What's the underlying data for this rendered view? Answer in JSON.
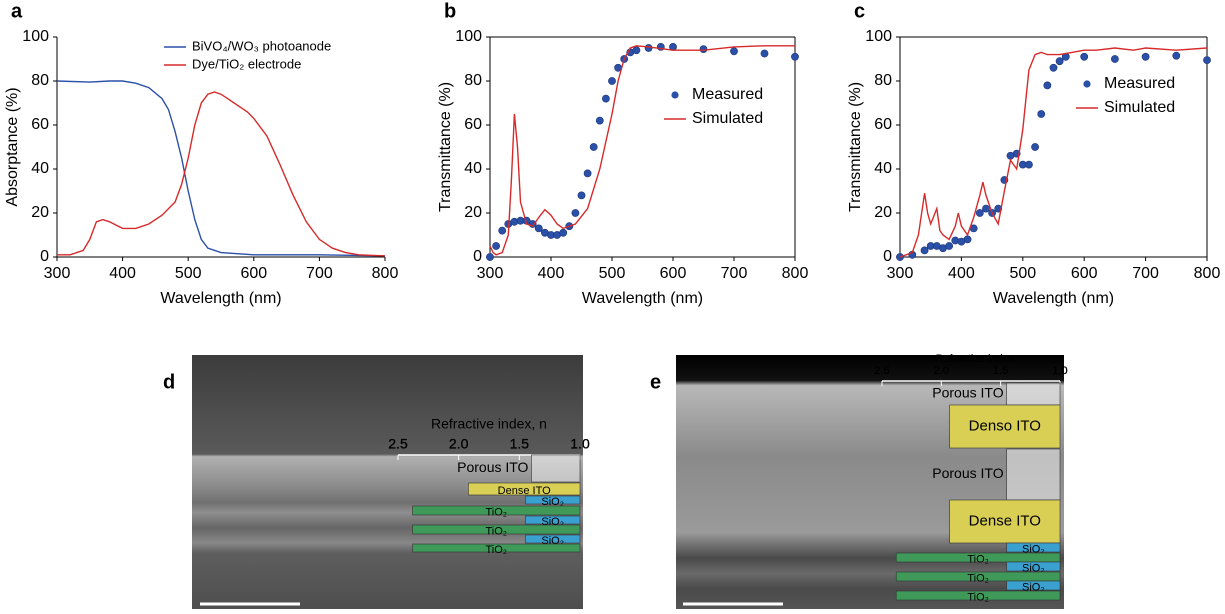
{
  "chart_data": [
    {
      "type": "line",
      "panel_label": "a",
      "xlabel": "Wavelength (nm)",
      "ylabel": "Absorptance (%)",
      "xlim": [
        300,
        800
      ],
      "ylim": [
        0,
        100
      ],
      "xticks": [
        300,
        400,
        500,
        600,
        700,
        800
      ],
      "yticks": [
        0,
        20,
        40,
        60,
        80,
        100
      ],
      "box": false,
      "legend": "upper right",
      "series": [
        {
          "name": "BiVO₄/WO₃ photoanode",
          "color": "#2b50a8",
          "marker": false,
          "x": [
            300,
            350,
            380,
            400,
            420,
            440,
            460,
            470,
            480,
            490,
            500,
            510,
            520,
            530,
            550,
            600,
            700,
            800
          ],
          "values": [
            80,
            79.5,
            80,
            80,
            79,
            77,
            72,
            67,
            57,
            45,
            30,
            17,
            8,
            4,
            2,
            1,
            1,
            0.5
          ]
        },
        {
          "name": "Dye/TiO₂ electrode",
          "color": "#d62a2a",
          "marker": false,
          "x": [
            300,
            320,
            340,
            350,
            360,
            370,
            380,
            400,
            420,
            440,
            460,
            480,
            490,
            500,
            510,
            520,
            530,
            540,
            550,
            560,
            570,
            580,
            590,
            600,
            620,
            640,
            660,
            680,
            700,
            720,
            740,
            760,
            800
          ],
          "values": [
            1,
            1,
            3,
            8,
            16,
            17,
            16,
            13,
            13,
            15,
            19,
            25,
            33,
            45,
            60,
            70,
            74,
            75,
            74,
            72,
            70,
            68,
            66,
            63,
            55,
            42,
            28,
            16,
            8,
            4,
            2,
            1,
            0.5
          ]
        }
      ]
    },
    {
      "type": "line",
      "panel_label": "b",
      "xlabel": "Wavelength (nm)",
      "ylabel": "Transmittance (%)",
      "xlim": [
        300,
        800
      ],
      "ylim": [
        0,
        100
      ],
      "xticks": [
        300,
        400,
        500,
        600,
        700,
        800
      ],
      "yticks": [
        0,
        20,
        40,
        60,
        80,
        100
      ],
      "box": true,
      "legend": "center right",
      "series": [
        {
          "name": "Measured",
          "color": "#2b50a8",
          "marker": true,
          "x": [
            300,
            310,
            320,
            330,
            340,
            350,
            360,
            370,
            380,
            390,
            400,
            410,
            420,
            430,
            440,
            450,
            460,
            470,
            480,
            490,
            500,
            510,
            520,
            530,
            540,
            560,
            580,
            600,
            650,
            700,
            750,
            800
          ],
          "values": [
            0,
            5,
            12,
            15,
            16,
            16.5,
            16.5,
            15,
            13,
            11,
            10,
            10,
            11,
            14,
            20,
            28,
            38,
            50,
            62,
            72,
            80,
            86,
            90,
            93,
            94,
            95,
            95.5,
            95.5,
            94.5,
            93.5,
            92.5,
            91
          ]
        },
        {
          "name": "Simulated",
          "color": "#d62a2a",
          "marker": false,
          "x": [
            300,
            305,
            310,
            320,
            330,
            335,
            340,
            345,
            350,
            360,
            370,
            380,
            390,
            400,
            410,
            420,
            440,
            460,
            480,
            500,
            510,
            520,
            530,
            540,
            560,
            600,
            650,
            700,
            750,
            800
          ],
          "values": [
            5,
            2,
            1,
            2,
            10,
            35,
            65,
            50,
            25,
            15,
            14,
            18,
            21.5,
            19,
            15,
            13,
            15,
            22,
            40,
            65,
            80,
            90,
            95,
            96,
            95.5,
            94,
            94,
            95.5,
            96,
            96
          ]
        }
      ]
    },
    {
      "type": "line",
      "panel_label": "c",
      "xlabel": "Wavelength (nm)",
      "ylabel": "Transmittance (%)",
      "xlim": [
        300,
        800
      ],
      "ylim": [
        0,
        100
      ],
      "xticks": [
        300,
        400,
        500,
        600,
        700,
        800
      ],
      "yticks": [
        0,
        20,
        40,
        60,
        80,
        100
      ],
      "box": true,
      "legend": "upper right",
      "series": [
        {
          "name": "Measured",
          "color": "#2b50a8",
          "marker": true,
          "x": [
            300,
            320,
            340,
            350,
            360,
            370,
            380,
            390,
            400,
            410,
            420,
            430,
            440,
            450,
            460,
            470,
            480,
            490,
            500,
            510,
            520,
            530,
            540,
            550,
            560,
            570,
            600,
            650,
            700,
            750,
            800
          ],
          "values": [
            0,
            1,
            3,
            5,
            5,
            4,
            5,
            7.5,
            7,
            8,
            13,
            20,
            22,
            20,
            22,
            35,
            46,
            47,
            42,
            42,
            50,
            65,
            78,
            86,
            89,
            91,
            91,
            90,
            91,
            91.5,
            89.5
          ]
        },
        {
          "name": "Simulated",
          "color": "#d62a2a",
          "marker": false,
          "x": [
            300,
            320,
            330,
            340,
            345,
            350,
            360,
            365,
            370,
            380,
            390,
            395,
            400,
            410,
            420,
            430,
            435,
            440,
            450,
            460,
            470,
            480,
            490,
            500,
            510,
            520,
            530,
            540,
            560,
            580,
            600,
            620,
            650,
            680,
            700,
            750,
            800
          ],
          "values": [
            0,
            2,
            10,
            29,
            20,
            15,
            22,
            12,
            10,
            8,
            14,
            20,
            14,
            10,
            18,
            28,
            34,
            28,
            20,
            15,
            30,
            44,
            40,
            58,
            85,
            92,
            93,
            92,
            92,
            93,
            94,
            94,
            95,
            94,
            95,
            94,
            95
          ]
        }
      ]
    }
  ],
  "images": [
    {
      "panel_label": "d",
      "axis_label": "Refractive index, n",
      "xlim": [
        2.5,
        1.0
      ],
      "xticks": [
        2.5,
        {
          "value": 2.0,
          "label": "2.0"
        },
        1.5,
        {
          "value": 1.0,
          "label": "1.0"
        }
      ],
      "layers": [
        {
          "label": "Porous ITO",
          "n": 1.4,
          "color": "#eeeeee"
        },
        {
          "label": "Dense ITO",
          "n": 1.92,
          "color": "#d9cf55"
        },
        {
          "label": "SiO₂",
          "n": 1.45,
          "color": "#3aa0cf"
        },
        {
          "label": "TiO₂",
          "n": 2.38,
          "color": "#3f9a5a"
        },
        {
          "label": "SiO₂",
          "n": 1.45,
          "color": "#3aa0cf"
        },
        {
          "label": "TiO₂",
          "n": 2.38,
          "color": "#3f9a5a"
        },
        {
          "label": "SiO₂",
          "n": 1.45,
          "color": "#3aa0cf"
        },
        {
          "label": "TiO₂",
          "n": 2.38,
          "color": "#3f9a5a"
        }
      ]
    },
    {
      "panel_label": "e",
      "axis_label": "Refractive index, n",
      "xlim": [
        2.5,
        1.0
      ],
      "xticks": [
        2.5,
        {
          "value": 2.0,
          "label": "2.0"
        },
        1.5,
        {
          "value": 1.0,
          "label": "1.0"
        }
      ],
      "layers": [
        {
          "label": "Porous ITO",
          "n": 1.45,
          "color": "#eeeeee"
        },
        {
          "label": "Denso ITO",
          "n": 1.93,
          "color": "#d9cf55"
        },
        {
          "label": "Porous ITO",
          "n": 1.45,
          "color": "#eeeeee"
        },
        {
          "label": "Dense ITO",
          "n": 1.93,
          "color": "#d9cf55"
        },
        {
          "label": "SiO₂",
          "n": 1.45,
          "color": "#3aa0cf"
        },
        {
          "label": "TiO₂",
          "n": 2.38,
          "color": "#3f9a5a"
        },
        {
          "label": "SiO₂",
          "n": 1.45,
          "color": "#3aa0cf"
        },
        {
          "label": "TiO₂",
          "n": 2.38,
          "color": "#3f9a5a"
        },
        {
          "label": "SiO₂",
          "n": 1.45,
          "color": "#3aa0cf"
        },
        {
          "label": "TiO₂",
          "n": 2.38,
          "color": "#3f9a5a"
        }
      ]
    }
  ]
}
